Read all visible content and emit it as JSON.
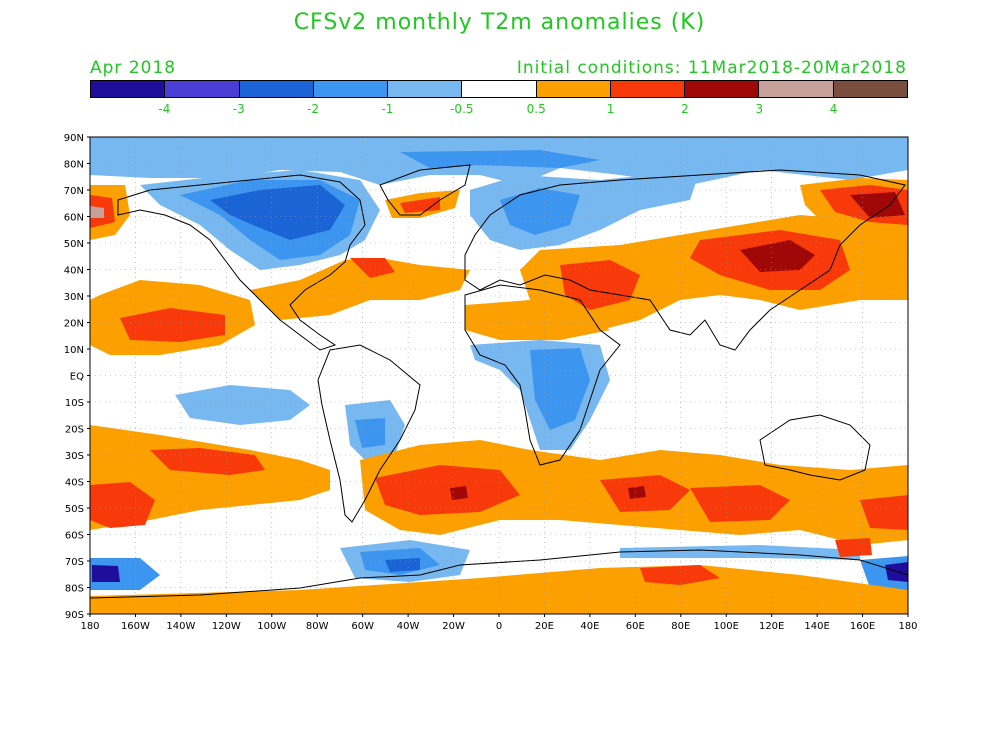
{
  "title": "CFSv2 monthly T2m anomalies (K)",
  "month": "Apr 2018",
  "initial_conditions": "Initial conditions: 11Mar2018-20Mar2018",
  "colorbar": {
    "colors": [
      "#1f0e9c",
      "#4a3ed4",
      "#1a64d6",
      "#3c96f0",
      "#78b8f0",
      "#ffffff",
      "#fca000",
      "#f83a0a",
      "#a00808",
      "#c8a09a",
      "#7a4e3e"
    ],
    "ticks": [
      "-4",
      "-3",
      "-2",
      "-1",
      "-0.5",
      "0.5",
      "1",
      "2",
      "3",
      "4"
    ]
  },
  "map": {
    "lat_labels": [
      "90N",
      "80N",
      "70N",
      "60N",
      "50N",
      "40N",
      "30N",
      "20N",
      "10N",
      "EQ",
      "10S",
      "20S",
      "30S",
      "40S",
      "50S",
      "60S",
      "70S",
      "80S",
      "90S"
    ],
    "lon_labels": [
      "180",
      "160W",
      "140W",
      "120W",
      "100W",
      "80W",
      "60W",
      "40W",
      "20W",
      "0",
      "20E",
      "40E",
      "60E",
      "80E",
      "100E",
      "120E",
      "140E",
      "160E",
      "180"
    ]
  }
}
